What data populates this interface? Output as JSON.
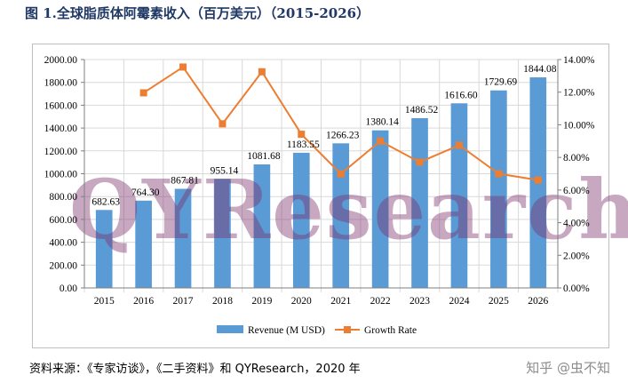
{
  "title": "图 1.全球脂质体阿霉素收入（百万美元）（2015-2026）",
  "source": "资料来源：《专家访谈》，《二手资料》和 QYResearch，2020 年",
  "zhihu": "知乎 @虫不知",
  "watermark": "QYResearch",
  "colors": {
    "bar": "#5b9bd5",
    "line": "#ed7d31",
    "grid": "#d9d9d9",
    "watermark": "#7b2e6b"
  },
  "chart_data": {
    "type": "bar",
    "categories": [
      "2015",
      "2016",
      "2017",
      "2018",
      "2019",
      "2020",
      "2021",
      "2022",
      "2023",
      "2024",
      "2025",
      "2026"
    ],
    "series": [
      {
        "name": "Revenue (M USD)",
        "type": "bar",
        "axis": "left",
        "values": [
          682.63,
          764.3,
          867.81,
          955.14,
          1081.68,
          1183.55,
          1266.23,
          1380.14,
          1486.52,
          1616.6,
          1729.69,
          1844.08
        ],
        "labels": [
          "682.63",
          "764.30",
          "867.81",
          "955.14",
          "1081.68",
          "1183.55",
          "1266.23",
          "1380.14",
          "1486.52",
          "1616.60",
          "1729.69",
          "1844.08"
        ]
      },
      {
        "name": "Growth Rate",
        "type": "line",
        "axis": "right",
        "values": [
          null,
          11.96,
          13.54,
          10.06,
          13.25,
          9.42,
          6.99,
          9.0,
          7.71,
          8.75,
          7.0,
          6.61
        ]
      }
    ],
    "y_left": {
      "min": 0,
      "max": 2000,
      "step": 200,
      "ticks": [
        "0.00",
        "200.00",
        "400.00",
        "600.00",
        "800.00",
        "1000.00",
        "1200.00",
        "1400.00",
        "1600.00",
        "1800.00",
        "2000.00"
      ]
    },
    "y_right": {
      "min": 0,
      "max": 14,
      "step": 2,
      "ticks": [
        "0.00%",
        "2.00%",
        "4.00%",
        "6.00%",
        "8.00%",
        "10.00%",
        "12.00%",
        "14.00%"
      ]
    },
    "legend": [
      "Revenue (M USD)",
      "Growth Rate"
    ],
    "grid": true
  }
}
